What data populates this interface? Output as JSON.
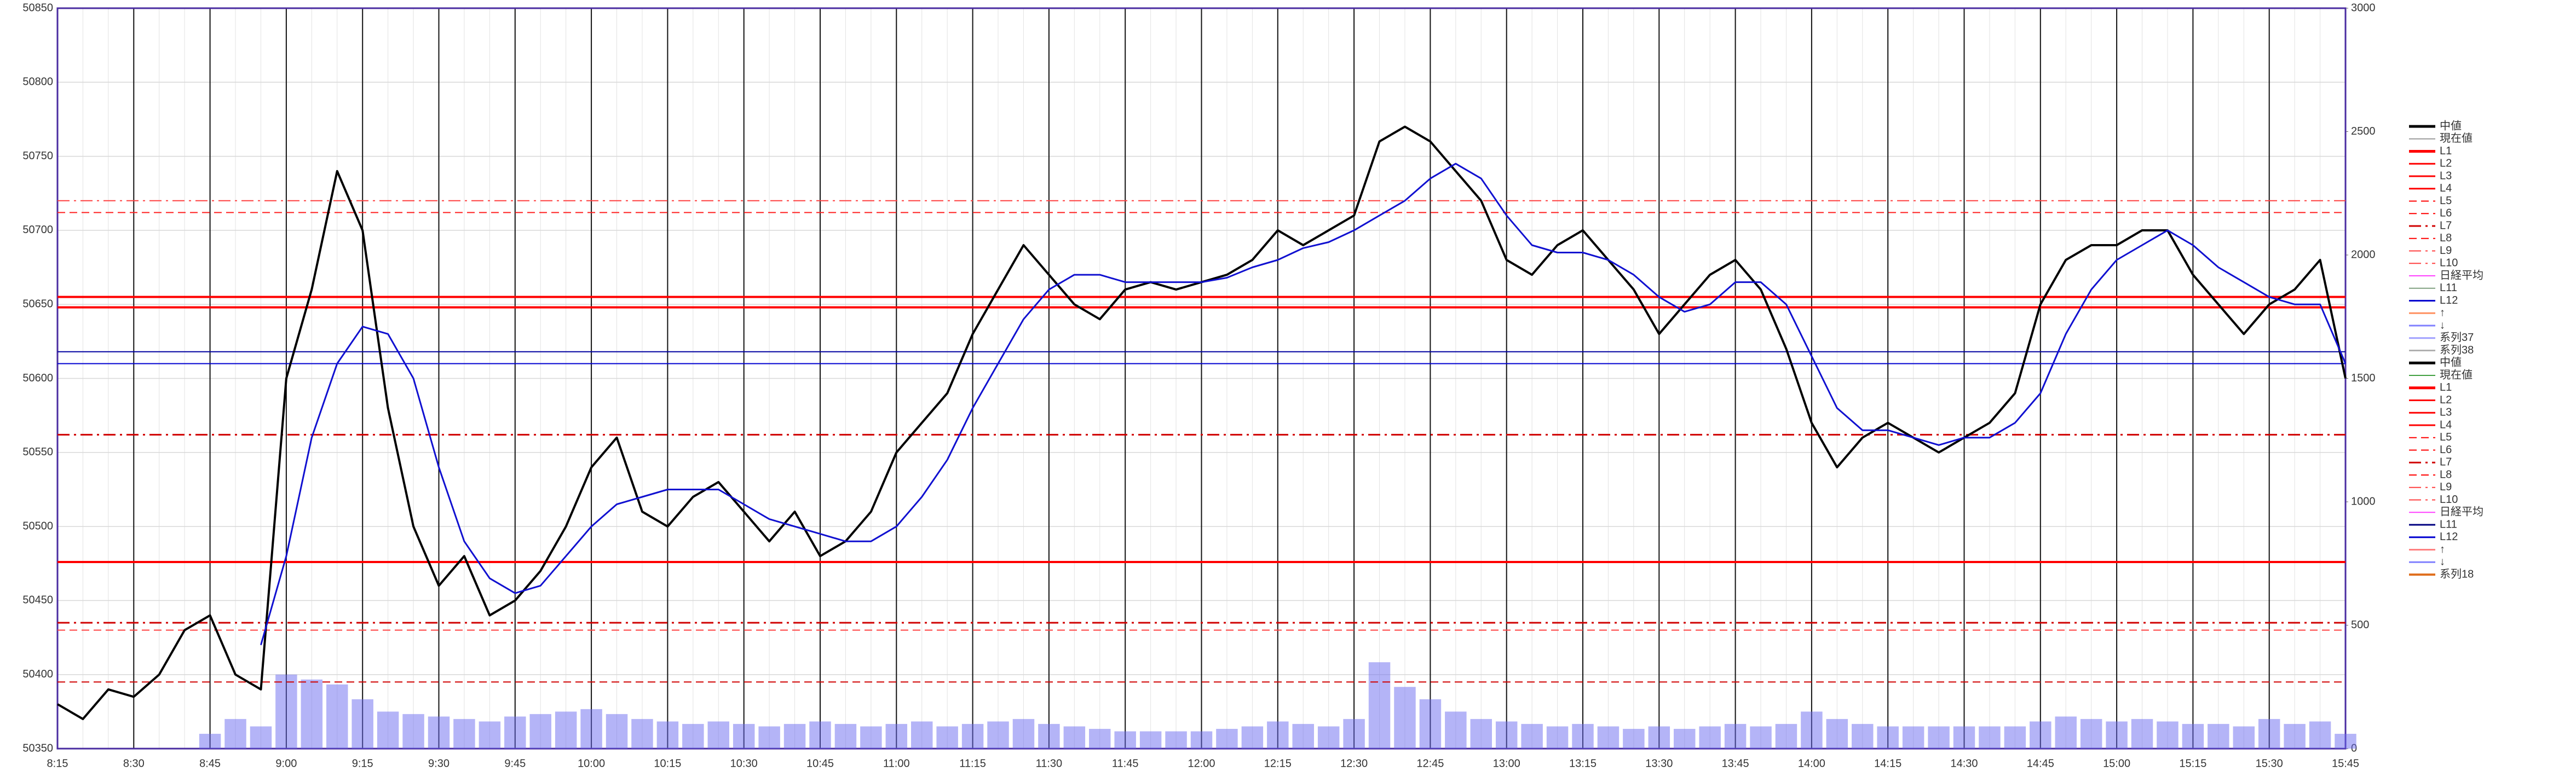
{
  "chart_data": {
    "type": "line",
    "categories": [
      "8:15",
      "8:30",
      "8:45",
      "9:00",
      "9:15",
      "9:30",
      "9:45",
      "10:00",
      "10:15",
      "10:30",
      "10:45",
      "11:00",
      "11:15",
      "11:30",
      "11:45",
      "12:00",
      "12:15",
      "12:30",
      "12:45",
      "13:00",
      "13:15",
      "13:30",
      "13:45",
      "14:00",
      "14:15",
      "14:30",
      "14:45",
      "15:00",
      "15:15",
      "15:30",
      "15:45"
    ],
    "x": [
      "8:15",
      "8:20",
      "8:25",
      "8:30",
      "8:35",
      "8:40",
      "8:45",
      "8:50",
      "8:55",
      "9:00",
      "9:05",
      "9:10",
      "9:15",
      "9:20",
      "9:25",
      "9:30",
      "9:35",
      "9:40",
      "9:45",
      "9:50",
      "9:55",
      "10:00",
      "10:05",
      "10:10",
      "10:15",
      "10:20",
      "10:25",
      "10:30",
      "10:35",
      "10:40",
      "10:45",
      "10:50",
      "10:55",
      "11:00",
      "11:05",
      "11:10",
      "11:15",
      "11:20",
      "11:25",
      "11:30",
      "11:35",
      "11:40",
      "11:45",
      "11:50",
      "11:55",
      "12:00",
      "12:05",
      "12:10",
      "12:15",
      "12:20",
      "12:25",
      "12:30",
      "12:35",
      "12:40",
      "12:45",
      "12:50",
      "12:55",
      "13:00",
      "13:05",
      "13:10",
      "13:15",
      "13:20",
      "13:25",
      "13:30",
      "13:35",
      "13:40",
      "13:45",
      "13:50",
      "13:55",
      "14:00",
      "14:05",
      "14:10",
      "14:15",
      "14:20",
      "14:25",
      "14:30",
      "14:35",
      "14:40",
      "14:45",
      "14:50",
      "14:55",
      "15:00",
      "15:05",
      "15:10",
      "15:15",
      "15:20",
      "15:25",
      "15:30",
      "15:35",
      "15:40",
      "15:45"
    ],
    "series": [
      {
        "color": "#000000",
        "width": 4,
        "values": [
          50380,
          50370,
          50390,
          50385,
          50400,
          50430,
          50440,
          50400,
          50390,
          50600,
          50660,
          50740,
          50700,
          50580,
          50500,
          50460,
          50480,
          50440,
          50450,
          50470,
          50500,
          50540,
          50560,
          50510,
          50500,
          50520,
          50530,
          50510,
          50490,
          50510,
          50480,
          50490,
          50510,
          50550,
          50570,
          50590,
          50630,
          50660,
          50690,
          50670,
          50650,
          50640,
          50660,
          50665,
          50660,
          50665,
          50670,
          50680,
          50700,
          50690,
          50700,
          50710,
          50760,
          50770,
          50760,
          50740,
          50720,
          50680,
          50670,
          50690,
          50700,
          50680,
          50660,
          50630,
          50650,
          50670,
          50680,
          50660,
          50620,
          50570,
          50540,
          50560,
          50570,
          50560,
          50550,
          50560,
          50570,
          50590,
          50650,
          50680,
          50690,
          50690,
          50700,
          50700,
          50670,
          50650,
          50630,
          50650,
          50660,
          50680,
          50600
        ]
      },
      {
        "color": "#1010d0",
        "width": 3,
        "values": [
          null,
          null,
          null,
          null,
          null,
          null,
          null,
          null,
          50420,
          50480,
          50560,
          50610,
          50635,
          50630,
          50600,
          50540,
          50490,
          50465,
          50455,
          50460,
          50480,
          50500,
          50515,
          50520,
          50525,
          50525,
          50525,
          50515,
          50505,
          50500,
          50495,
          50490,
          50490,
          50500,
          50520,
          50545,
          50580,
          50610,
          50640,
          50660,
          50670,
          50670,
          50665,
          50665,
          50665,
          50665,
          50668,
          50675,
          50680,
          50688,
          50692,
          50700,
          50710,
          50720,
          50735,
          50745,
          50735,
          50710,
          50690,
          50685,
          50685,
          50680,
          50670,
          50655,
          50645,
          50650,
          50665,
          50665,
          50650,
          50615,
          50580,
          50565,
          50565,
          50560,
          50555,
          50560,
          50560,
          50570,
          50590,
          50630,
          50660,
          50680,
          50690,
          50700,
          50690,
          50675,
          50665,
          50655,
          50650,
          50650,
          50610
        ]
      },
      {
        "color": "#6a6af0",
        "axis": "y2",
        "values": [
          0,
          0,
          0,
          0,
          0,
          0,
          60,
          120,
          90,
          300,
          280,
          260,
          200,
          150,
          140,
          130,
          120,
          110,
          130,
          140,
          150,
          160,
          140,
          120,
          110,
          100,
          110,
          100,
          90,
          100,
          110,
          100,
          90,
          100,
          110,
          90,
          100,
          110,
          120,
          100,
          90,
          80,
          70,
          70,
          70,
          70,
          80,
          90,
          110,
          100,
          90,
          120,
          350,
          250,
          200,
          150,
          120,
          110,
          100,
          90,
          100,
          90,
          80,
          90,
          80,
          90,
          100,
          90,
          100,
          150,
          120,
          100,
          90,
          90,
          90,
          90,
          90,
          90,
          110,
          130,
          120,
          110,
          120,
          110,
          100,
          100,
          90,
          120,
          100,
          110,
          60
        ]
      }
    ],
    "levels": [
      {
        "value": 50655,
        "color": "#ff0000",
        "dash": "solid",
        "width": 4
      },
      {
        "value": 50648,
        "color": "#ff0000",
        "dash": "solid",
        "width": 4
      },
      {
        "value": 50476,
        "color": "#ff0000",
        "dash": "solid",
        "width": 4
      },
      {
        "value": 50562,
        "color": "#d00000",
        "dash": "dashdot",
        "width": 3
      },
      {
        "value": 50720,
        "color": "#ff4040",
        "dash": "dashdot",
        "width": 2
      },
      {
        "value": 50712,
        "color": "#ff2020",
        "dash": "dash",
        "width": 2
      },
      {
        "value": 50435,
        "color": "#d00000",
        "dash": "dashdot",
        "width": 3
      },
      {
        "value": 50430,
        "color": "#ff4040",
        "dash": "dash",
        "width": 2
      },
      {
        "value": 50395,
        "color": "#d00000",
        "dash": "dash",
        "width": 2
      },
      {
        "value": 50618,
        "color": "#0000a0",
        "dash": "solid",
        "width": 2
      },
      {
        "value": 50610,
        "color": "#0000d0",
        "dash": "solid",
        "width": 2
      }
    ],
    "ylim": [
      50350,
      50850
    ],
    "yticks": [
      50350,
      50400,
      50450,
      50500,
      50550,
      50600,
      50650,
      50700,
      50750,
      50800,
      50850
    ],
    "y2lim": [
      0,
      3000
    ],
    "y2ticks": [
      0,
      500,
      1000,
      1500,
      2000,
      2500,
      3000
    ],
    "grid": true,
    "legend": [
      {
        "name": "中値",
        "color": "#000000",
        "dash": "solid",
        "width": 5
      },
      {
        "name": "現在値",
        "color": "#999999",
        "dash": "solid",
        "width": 2
      },
      {
        "name": "L1",
        "color": "#ff0000",
        "dash": "solid",
        "width": 5
      },
      {
        "name": "L2",
        "color": "#ff0000",
        "dash": "solid",
        "width": 3
      },
      {
        "name": "L3",
        "color": "#ff0000",
        "dash": "solid",
        "width": 3
      },
      {
        "name": "L4",
        "color": "#ff0000",
        "dash": "solid",
        "width": 3
      },
      {
        "name": "L5",
        "color": "#ff0000",
        "dash": "dash",
        "width": 2
      },
      {
        "name": "L6",
        "color": "#ff0000",
        "dash": "dash",
        "width": 2
      },
      {
        "name": "L7",
        "color": "#d00000",
        "dash": "dashdot",
        "width": 3
      },
      {
        "name": "L8",
        "color": "#ff0000",
        "dash": "dash",
        "width": 2
      },
      {
        "name": "L9",
        "color": "#ff4040",
        "dash": "dashdot",
        "width": 2
      },
      {
        "name": "L10",
        "color": "#ff4040",
        "dash": "dashdot",
        "width": 2
      },
      {
        "name": "日経平均",
        "color": "#ff40ff",
        "dash": "solid",
        "width": 2
      },
      {
        "name": "L11",
        "color": "#80a080",
        "dash": "solid",
        "width": 2
      },
      {
        "name": "L12",
        "color": "#0000d0",
        "dash": "solid",
        "width": 3
      },
      {
        "name": "↑",
        "color": "#ff9060",
        "dash": "solid",
        "width": 3
      },
      {
        "name": "↓",
        "color": "#8080ff",
        "dash": "solid",
        "width": 3
      },
      {
        "name": "系列37",
        "color": "#a0a0ff",
        "dash": "solid",
        "width": 3
      },
      {
        "name": "系列38",
        "color": "#b0b0b0",
        "dash": "solid",
        "width": 3
      },
      {
        "name": "中値",
        "color": "#000000",
        "dash": "solid",
        "width": 5
      },
      {
        "name": "現在値",
        "color": "#40a040",
        "dash": "solid",
        "width": 2
      },
      {
        "name": "L1",
        "color": "#ff0000",
        "dash": "solid",
        "width": 5
      },
      {
        "name": "L2",
        "color": "#ff0000",
        "dash": "solid",
        "width": 3
      },
      {
        "name": "L3",
        "color": "#ff0000",
        "dash": "solid",
        "width": 3
      },
      {
        "name": "L4",
        "color": "#ff0000",
        "dash": "solid",
        "width": 3
      },
      {
        "name": "L5",
        "color": "#ff0000",
        "dash": "dash",
        "width": 2
      },
      {
        "name": "L6",
        "color": "#ff0000",
        "dash": "dash",
        "width": 2
      },
      {
        "name": "L7",
        "color": "#d00000",
        "dash": "dashdot",
        "width": 3
      },
      {
        "name": "L8",
        "color": "#ff0000",
        "dash": "dash",
        "width": 2
      },
      {
        "name": "L9",
        "color": "#ff4040",
        "dash": "dashdot",
        "width": 2
      },
      {
        "name": "L10",
        "color": "#ff4040",
        "dash": "dashdot",
        "width": 2
      },
      {
        "name": "日経平均",
        "color": "#ff40ff",
        "dash": "solid",
        "width": 2
      },
      {
        "name": "L11",
        "color": "#000080",
        "dash": "solid",
        "width": 3
      },
      {
        "name": "L12",
        "color": "#0000d0",
        "dash": "solid",
        "width": 3
      },
      {
        "name": "↑",
        "color": "#ff8080",
        "dash": "solid",
        "width": 3
      },
      {
        "name": "↓",
        "color": "#8080ff",
        "dash": "solid",
        "width": 3
      },
      {
        "name": "系列18",
        "color": "#e07020",
        "dash": "solid",
        "width": 4
      }
    ]
  }
}
